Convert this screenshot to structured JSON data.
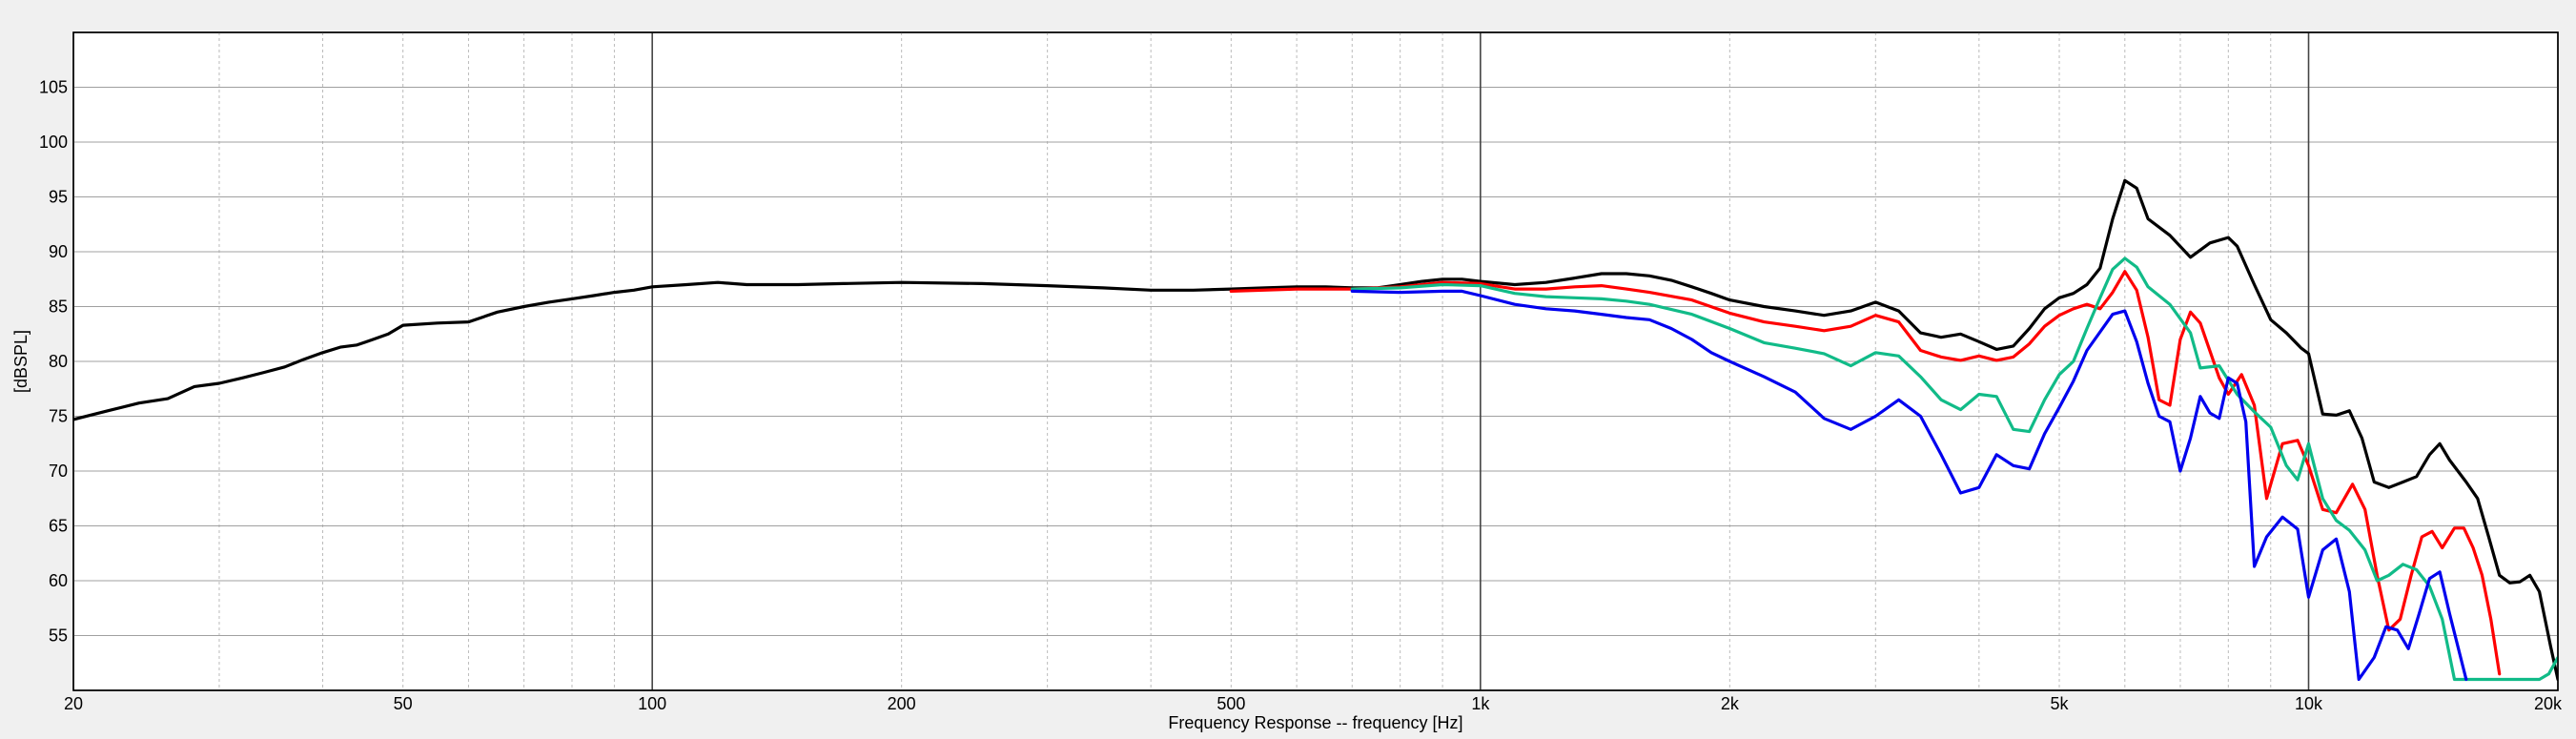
{
  "chart_data": {
    "type": "line",
    "xlabel": "Frequency Response -- frequency [Hz]",
    "ylabel": "[dBSPL]",
    "x_scale": "log",
    "xlim": [
      20,
      20000
    ],
    "ylim": [
      50,
      110
    ],
    "x_ticks": [
      {
        "value": 20,
        "label": "20"
      },
      {
        "value": 50,
        "label": "50"
      },
      {
        "value": 100,
        "label": "100"
      },
      {
        "value": 200,
        "label": "200"
      },
      {
        "value": 500,
        "label": "500"
      },
      {
        "value": 1000,
        "label": "1k"
      },
      {
        "value": 2000,
        "label": "2k"
      },
      {
        "value": 5000,
        "label": "5k"
      },
      {
        "value": 10000,
        "label": "10k"
      },
      {
        "value": 20000,
        "label": "20k"
      }
    ],
    "y_ticks": [
      55,
      60,
      65,
      70,
      75,
      80,
      85,
      90,
      95,
      100,
      105
    ],
    "grid": true,
    "colors": {
      "black": "#000000",
      "red": "#ff0000",
      "green": "#11bb88",
      "blue": "#0000ee",
      "grid_major": "#444444",
      "grid_minor": "#bbbbbb",
      "plot_bg": "#ffffff"
    },
    "series": [
      {
        "color": "#000000",
        "points": [
          [
            20,
            74.7
          ],
          [
            22,
            75.5
          ],
          [
            24,
            76.2
          ],
          [
            26,
            76.6
          ],
          [
            28,
            77.7
          ],
          [
            30,
            78.0
          ],
          [
            32,
            78.5
          ],
          [
            34,
            79.0
          ],
          [
            36,
            79.5
          ],
          [
            38,
            80.2
          ],
          [
            40,
            80.8
          ],
          [
            42,
            81.3
          ],
          [
            44,
            81.5
          ],
          [
            46,
            82.0
          ],
          [
            48,
            82.5
          ],
          [
            50,
            83.3
          ],
          [
            55,
            83.5
          ],
          [
            60,
            83.6
          ],
          [
            65,
            84.5
          ],
          [
            70,
            85.0
          ],
          [
            75,
            85.4
          ],
          [
            80,
            85.7
          ],
          [
            85,
            86.0
          ],
          [
            90,
            86.3
          ],
          [
            95,
            86.5
          ],
          [
            100,
            86.8
          ],
          [
            110,
            87.0
          ],
          [
            120,
            87.2
          ],
          [
            130,
            87.0
          ],
          [
            150,
            87.0
          ],
          [
            170,
            87.1
          ],
          [
            200,
            87.2
          ],
          [
            250,
            87.1
          ],
          [
            300,
            86.9
          ],
          [
            350,
            86.7
          ],
          [
            400,
            86.5
          ],
          [
            450,
            86.5
          ],
          [
            500,
            86.6
          ],
          [
            550,
            86.7
          ],
          [
            600,
            86.8
          ],
          [
            650,
            86.8
          ],
          [
            700,
            86.7
          ],
          [
            750,
            86.7
          ],
          [
            800,
            87.0
          ],
          [
            850,
            87.3
          ],
          [
            900,
            87.5
          ],
          [
            950,
            87.5
          ],
          [
            1000,
            87.3
          ],
          [
            1100,
            87.0
          ],
          [
            1200,
            87.2
          ],
          [
            1300,
            87.6
          ],
          [
            1400,
            88.0
          ],
          [
            1500,
            88.0
          ],
          [
            1600,
            87.8
          ],
          [
            1700,
            87.4
          ],
          [
            1800,
            86.8
          ],
          [
            1900,
            86.2
          ],
          [
            2000,
            85.6
          ],
          [
            2200,
            85.0
          ],
          [
            2400,
            84.6
          ],
          [
            2600,
            84.2
          ],
          [
            2800,
            84.6
          ],
          [
            3000,
            85.4
          ],
          [
            3200,
            84.6
          ],
          [
            3400,
            82.6
          ],
          [
            3600,
            82.2
          ],
          [
            3800,
            82.5
          ],
          [
            4000,
            81.8
          ],
          [
            4200,
            81.1
          ],
          [
            4400,
            81.4
          ],
          [
            4600,
            83.0
          ],
          [
            4800,
            84.8
          ],
          [
            5000,
            85.8
          ],
          [
            5200,
            86.2
          ],
          [
            5400,
            87.0
          ],
          [
            5600,
            88.5
          ],
          [
            5800,
            93.0
          ],
          [
            6000,
            96.5
          ],
          [
            6200,
            95.8
          ],
          [
            6400,
            93.0
          ],
          [
            6800,
            91.5
          ],
          [
            7200,
            89.5
          ],
          [
            7600,
            90.8
          ],
          [
            8000,
            91.3
          ],
          [
            8200,
            90.5
          ],
          [
            8600,
            87.0
          ],
          [
            9000,
            83.8
          ],
          [
            9400,
            82.6
          ],
          [
            9800,
            81.2
          ],
          [
            10000,
            80.7
          ],
          [
            10400,
            75.2
          ],
          [
            10800,
            75.1
          ],
          [
            11200,
            75.5
          ],
          [
            11600,
            73.0
          ],
          [
            12000,
            69.0
          ],
          [
            12500,
            68.5
          ],
          [
            13000,
            69.0
          ],
          [
            13500,
            69.5
          ],
          [
            14000,
            71.5
          ],
          [
            14400,
            72.5
          ],
          [
            14800,
            71.0
          ],
          [
            15500,
            69.0
          ],
          [
            16000,
            67.5
          ],
          [
            16500,
            64.0
          ],
          [
            17000,
            60.5
          ],
          [
            17500,
            59.8
          ],
          [
            18000,
            59.9
          ],
          [
            18500,
            60.5
          ],
          [
            19000,
            59.0
          ],
          [
            19600,
            54.0
          ],
          [
            20000,
            51.0
          ]
        ]
      },
      {
        "color": "#ff0000",
        "points": [
          [
            500,
            86.4
          ],
          [
            600,
            86.6
          ],
          [
            700,
            86.6
          ],
          [
            800,
            86.8
          ],
          [
            900,
            87.2
          ],
          [
            1000,
            87.1
          ],
          [
            1100,
            86.6
          ],
          [
            1200,
            86.6
          ],
          [
            1300,
            86.8
          ],
          [
            1400,
            86.9
          ],
          [
            1500,
            86.6
          ],
          [
            1600,
            86.3
          ],
          [
            1800,
            85.6
          ],
          [
            2000,
            84.4
          ],
          [
            2200,
            83.6
          ],
          [
            2400,
            83.2
          ],
          [
            2600,
            82.8
          ],
          [
            2800,
            83.2
          ],
          [
            3000,
            84.2
          ],
          [
            3200,
            83.6
          ],
          [
            3400,
            81.0
          ],
          [
            3600,
            80.4
          ],
          [
            3800,
            80.1
          ],
          [
            4000,
            80.5
          ],
          [
            4200,
            80.1
          ],
          [
            4400,
            80.4
          ],
          [
            4600,
            81.6
          ],
          [
            4800,
            83.2
          ],
          [
            5000,
            84.2
          ],
          [
            5200,
            84.8
          ],
          [
            5400,
            85.2
          ],
          [
            5600,
            84.8
          ],
          [
            5800,
            86.3
          ],
          [
            6000,
            88.2
          ],
          [
            6200,
            86.5
          ],
          [
            6400,
            82.2
          ],
          [
            6600,
            76.5
          ],
          [
            6800,
            76.0
          ],
          [
            7000,
            82.0
          ],
          [
            7200,
            84.5
          ],
          [
            7400,
            83.5
          ],
          [
            7800,
            78.5
          ],
          [
            8000,
            77.0
          ],
          [
            8300,
            78.8
          ],
          [
            8600,
            76.0
          ],
          [
            8900,
            67.5
          ],
          [
            9300,
            72.5
          ],
          [
            9700,
            72.8
          ],
          [
            10000,
            70.5
          ],
          [
            10400,
            66.5
          ],
          [
            10800,
            66.2
          ],
          [
            11300,
            68.8
          ],
          [
            11700,
            66.5
          ],
          [
            12100,
            60.5
          ],
          [
            12500,
            55.5
          ],
          [
            12900,
            56.5
          ],
          [
            13300,
            60.5
          ],
          [
            13700,
            64.0
          ],
          [
            14100,
            64.5
          ],
          [
            14500,
            63.0
          ],
          [
            15000,
            64.8
          ],
          [
            15400,
            64.8
          ],
          [
            15800,
            63.0
          ],
          [
            16200,
            60.5
          ],
          [
            16600,
            56.5
          ],
          [
            17000,
            51.5
          ]
        ]
      },
      {
        "color": "#11bb88",
        "points": [
          [
            700,
            86.6
          ],
          [
            800,
            86.7
          ],
          [
            900,
            87.0
          ],
          [
            1000,
            86.9
          ],
          [
            1100,
            86.2
          ],
          [
            1200,
            85.9
          ],
          [
            1300,
            85.8
          ],
          [
            1400,
            85.7
          ],
          [
            1500,
            85.5
          ],
          [
            1600,
            85.2
          ],
          [
            1800,
            84.3
          ],
          [
            2000,
            83.0
          ],
          [
            2200,
            81.7
          ],
          [
            2400,
            81.2
          ],
          [
            2600,
            80.7
          ],
          [
            2800,
            79.6
          ],
          [
            3000,
            80.8
          ],
          [
            3200,
            80.5
          ],
          [
            3400,
            78.6
          ],
          [
            3600,
            76.5
          ],
          [
            3800,
            75.6
          ],
          [
            4000,
            77.0
          ],
          [
            4200,
            76.8
          ],
          [
            4400,
            73.8
          ],
          [
            4600,
            73.6
          ],
          [
            4800,
            76.5
          ],
          [
            5000,
            78.8
          ],
          [
            5200,
            80.0
          ],
          [
            5400,
            83.0
          ],
          [
            5600,
            85.8
          ],
          [
            5800,
            88.4
          ],
          [
            6000,
            89.4
          ],
          [
            6200,
            88.6
          ],
          [
            6400,
            86.8
          ],
          [
            6800,
            85.2
          ],
          [
            7200,
            82.6
          ],
          [
            7400,
            79.4
          ],
          [
            7800,
            79.6
          ],
          [
            8200,
            77.0
          ],
          [
            8600,
            75.4
          ],
          [
            9000,
            74.0
          ],
          [
            9400,
            70.5
          ],
          [
            9700,
            69.2
          ],
          [
            10000,
            72.5
          ],
          [
            10400,
            67.5
          ],
          [
            10800,
            65.5
          ],
          [
            11200,
            64.6
          ],
          [
            11700,
            62.8
          ],
          [
            12100,
            60.0
          ],
          [
            12500,
            60.5
          ],
          [
            13000,
            61.5
          ],
          [
            13500,
            61.0
          ],
          [
            14000,
            59.5
          ],
          [
            14500,
            56.5
          ],
          [
            15000,
            51.0
          ],
          [
            19000,
            51.0
          ],
          [
            19500,
            51.5
          ],
          [
            20000,
            53.0
          ]
        ]
      },
      {
        "color": "#0000ee",
        "points": [
          [
            700,
            86.4
          ],
          [
            800,
            86.3
          ],
          [
            900,
            86.4
          ],
          [
            950,
            86.4
          ],
          [
            1000,
            86.0
          ],
          [
            1100,
            85.2
          ],
          [
            1200,
            84.8
          ],
          [
            1300,
            84.6
          ],
          [
            1400,
            84.3
          ],
          [
            1500,
            84.0
          ],
          [
            1600,
            83.8
          ],
          [
            1700,
            83.0
          ],
          [
            1800,
            82.0
          ],
          [
            1900,
            80.8
          ],
          [
            2000,
            80.0
          ],
          [
            2200,
            78.6
          ],
          [
            2400,
            77.2
          ],
          [
            2600,
            74.8
          ],
          [
            2800,
            73.8
          ],
          [
            3000,
            75.0
          ],
          [
            3200,
            76.5
          ],
          [
            3400,
            75.0
          ],
          [
            3600,
            71.5
          ],
          [
            3800,
            68.0
          ],
          [
            4000,
            68.5
          ],
          [
            4200,
            71.5
          ],
          [
            4400,
            70.5
          ],
          [
            4600,
            70.2
          ],
          [
            4800,
            73.4
          ],
          [
            5000,
            75.8
          ],
          [
            5200,
            78.2
          ],
          [
            5400,
            81.0
          ],
          [
            5800,
            84.3
          ],
          [
            6000,
            84.6
          ],
          [
            6200,
            81.8
          ],
          [
            6400,
            78.0
          ],
          [
            6600,
            75.0
          ],
          [
            6800,
            74.5
          ],
          [
            7000,
            70.0
          ],
          [
            7200,
            73.0
          ],
          [
            7400,
            76.8
          ],
          [
            7600,
            75.3
          ],
          [
            7800,
            74.8
          ],
          [
            8000,
            78.5
          ],
          [
            8200,
            78.0
          ],
          [
            8400,
            74.5
          ],
          [
            8600,
            61.3
          ],
          [
            8900,
            64.0
          ],
          [
            9300,
            65.8
          ],
          [
            9700,
            64.7
          ],
          [
            10000,
            58.5
          ],
          [
            10400,
            62.8
          ],
          [
            10800,
            63.8
          ],
          [
            11200,
            59.0
          ],
          [
            11500,
            51.0
          ],
          [
            12000,
            53.0
          ],
          [
            12400,
            55.8
          ],
          [
            12800,
            55.5
          ],
          [
            13200,
            53.8
          ],
          [
            13600,
            57.0
          ],
          [
            14000,
            60.2
          ],
          [
            14400,
            60.8
          ],
          [
            14800,
            57.0
          ],
          [
            15500,
            51.0
          ]
        ]
      }
    ]
  }
}
